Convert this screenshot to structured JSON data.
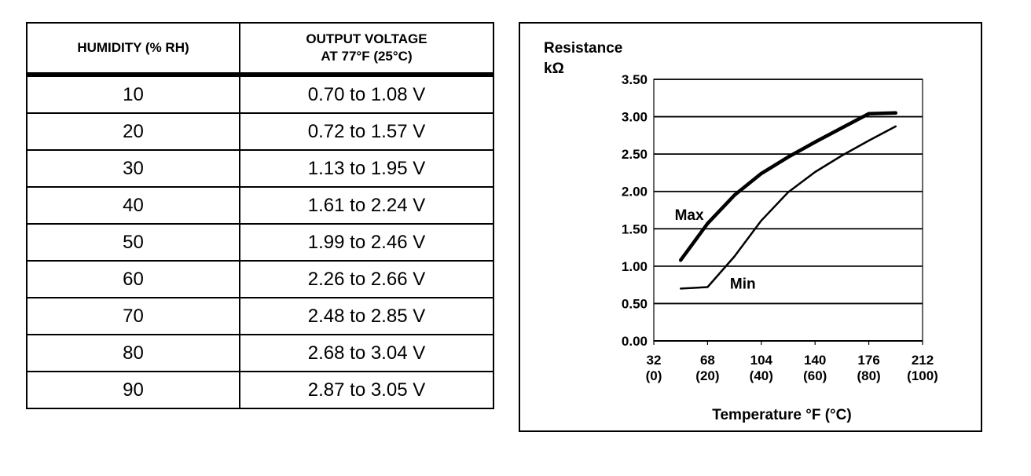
{
  "table": {
    "headers": {
      "col1": "HUMIDITY (% RH)",
      "col2_line1": "OUTPUT VOLTAGE",
      "col2_line2": "AT 77°F (25°C)"
    },
    "rows": [
      {
        "humidity": "10",
        "voltage": "0.70 to 1.08 V"
      },
      {
        "humidity": "20",
        "voltage": "0.72 to 1.57 V"
      },
      {
        "humidity": "30",
        "voltage": "1.13 to 1.95 V"
      },
      {
        "humidity": "40",
        "voltage": "1.61 to 2.24 V"
      },
      {
        "humidity": "50",
        "voltage": "1.99 to 2.46 V"
      },
      {
        "humidity": "60",
        "voltage": "2.26 to 2.66 V"
      },
      {
        "humidity": "70",
        "voltage": "2.48 to 2.85 V"
      },
      {
        "humidity": "80",
        "voltage": "2.68 to 3.04 V"
      },
      {
        "humidity": "90",
        "voltage": "2.87 to 3.05 V"
      }
    ]
  },
  "chart_data": {
    "type": "line",
    "ylabel_line1": "Resistance",
    "ylabel_line2": "kΩ",
    "xlabel": "Temperature °F (°C)",
    "ylim": [
      0,
      3.5
    ],
    "xlim": [
      32,
      212
    ],
    "y_ticks": [
      "0.00",
      "0.50",
      "1.00",
      "1.50",
      "2.00",
      "2.50",
      "3.00",
      "3.50"
    ],
    "x_ticks": [
      {
        "value": 32,
        "f": "32",
        "c": "(0)"
      },
      {
        "value": 68,
        "f": "68",
        "c": "(20)"
      },
      {
        "value": 104,
        "f": "104",
        "c": "(40)"
      },
      {
        "value": 140,
        "f": "140",
        "c": "(60)"
      },
      {
        "value": 176,
        "f": "176",
        "c": "(80)"
      },
      {
        "value": 212,
        "f": "212",
        "c": "(100)"
      }
    ],
    "grid": "horizontal",
    "series": [
      {
        "name": "Max",
        "points": [
          [
            50,
            1.08
          ],
          [
            68,
            1.57
          ],
          [
            86,
            1.95
          ],
          [
            104,
            2.24
          ],
          [
            122,
            2.46
          ],
          [
            140,
            2.66
          ],
          [
            158,
            2.85
          ],
          [
            176,
            3.04
          ],
          [
            194,
            3.05
          ]
        ]
      },
      {
        "name": "Min",
        "points": [
          [
            50,
            0.7
          ],
          [
            68,
            0.72
          ],
          [
            86,
            1.13
          ],
          [
            104,
            1.61
          ],
          [
            122,
            1.99
          ],
          [
            140,
            2.26
          ],
          [
            158,
            2.48
          ],
          [
            176,
            2.68
          ],
          [
            194,
            2.87
          ]
        ]
      }
    ]
  }
}
